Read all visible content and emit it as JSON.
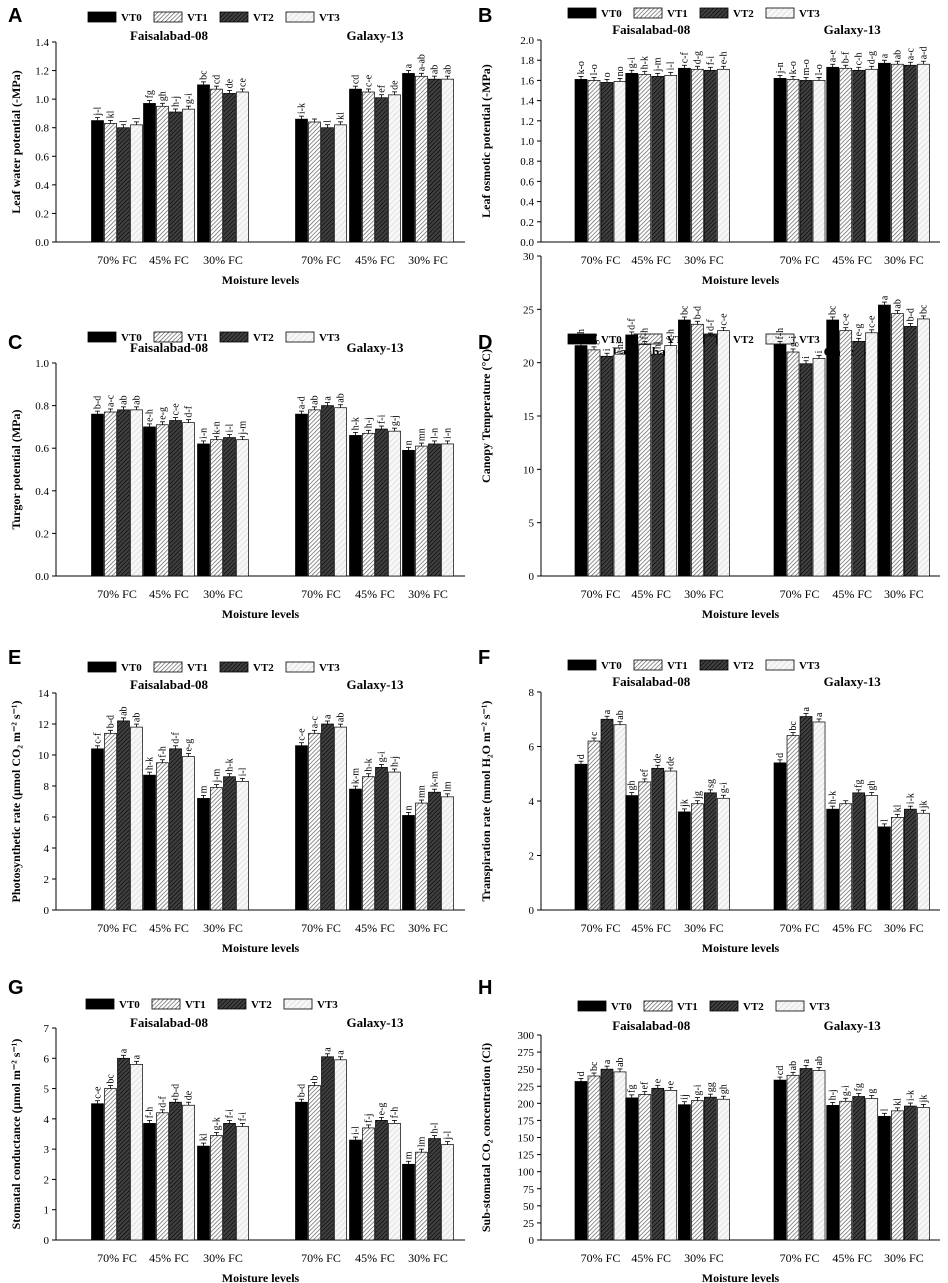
{
  "chart_data": [
    {
      "type": "bar",
      "panel_label": "A",
      "ylabel": "Leaf water potential (-MPa)",
      "xlabel": "Moisture levels",
      "ylim": [
        0,
        1.4
      ],
      "yticks": [
        "0.0",
        "0.2",
        "0.4",
        "0.6",
        "0.8",
        "1.0",
        "1.2",
        "1.4"
      ],
      "legend": [
        "VT0",
        "VT1",
        "VT2",
        "VT3"
      ],
      "cultivars": [
        "Faisalabad-08",
        "Galaxy-13"
      ],
      "categories": [
        "70% FC",
        "45% FC",
        "30% FC"
      ],
      "groups": [
        {
          "cultivar": "Faisalabad-08",
          "category": "70% FC",
          "values": [
            0.85,
            0.83,
            0.8,
            0.82
          ],
          "labels": [
            "j-l",
            "kl",
            "l",
            "l"
          ]
        },
        {
          "cultivar": "Faisalabad-08",
          "category": "45% FC",
          "values": [
            0.97,
            0.95,
            0.91,
            0.93
          ],
          "labels": [
            "fg",
            "gh",
            "h-j",
            "g-i"
          ]
        },
        {
          "cultivar": "Faisalabad-08",
          "category": "30% FC",
          "values": [
            1.1,
            1.07,
            1.04,
            1.05
          ],
          "labels": [
            "bc",
            "cd",
            "de",
            "ce"
          ]
        },
        {
          "cultivar": "Galaxy-13",
          "category": "70% FC",
          "values": [
            0.86,
            0.84,
            0.8,
            0.82
          ],
          "labels": [
            "i-k",
            "",
            "l",
            "kl"
          ]
        },
        {
          "cultivar": "Galaxy-13",
          "category": "45% FC",
          "values": [
            1.07,
            1.05,
            1.01,
            1.03
          ],
          "labels": [
            "cd",
            "c-e",
            "ef",
            "de"
          ]
        },
        {
          "cultivar": "Galaxy-13",
          "category": "30% FC",
          "values": [
            1.18,
            1.16,
            1.14,
            1.14
          ],
          "labels": [
            "a",
            "a-ab",
            "ab",
            "ab"
          ]
        }
      ]
    },
    {
      "type": "bar",
      "panel_label": "B",
      "ylabel": "Leaf osmotic potential (-MPa)",
      "xlabel": "Moisture levels",
      "ylim": [
        0,
        2.0
      ],
      "yticks": [
        "0.0",
        "0.2",
        "0.4",
        "0.6",
        "0.8",
        "1.0",
        "1.2",
        "1.4",
        "1.6",
        "1.8",
        "2.0"
      ],
      "legend": [
        "VT0",
        "VT1",
        "VT2",
        "VT3"
      ],
      "cultivars": [
        "Faisalabad-08",
        "Galaxy-13"
      ],
      "categories": [
        "70% FC",
        "45% FC",
        "30% FC"
      ],
      "groups": [
        {
          "cultivar": "Faisalabad-08",
          "category": "70% FC",
          "values": [
            1.61,
            1.6,
            1.58,
            1.59
          ],
          "labels": [
            "k-o",
            "l-o",
            "o",
            "no"
          ]
        },
        {
          "cultivar": "Faisalabad-08",
          "category": "45% FC",
          "values": [
            1.67,
            1.66,
            1.64,
            1.65
          ],
          "labels": [
            "g-i",
            "h-k",
            "j-m",
            "i-l"
          ]
        },
        {
          "cultivar": "Faisalabad-08",
          "category": "30% FC",
          "values": [
            1.72,
            1.71,
            1.7,
            1.71
          ],
          "labels": [
            "c-f",
            "d-g",
            "f-i",
            "e-h"
          ]
        },
        {
          "cultivar": "Galaxy-13",
          "category": "70% FC",
          "values": [
            1.62,
            1.61,
            1.6,
            1.6
          ],
          "labels": [
            "j-n",
            "k-o",
            "m-o",
            "l-o"
          ]
        },
        {
          "cultivar": "Galaxy-13",
          "category": "45% FC",
          "values": [
            1.73,
            1.72,
            1.7,
            1.71
          ],
          "labels": [
            "a-e",
            "b-f",
            "c-h",
            "d-g"
          ]
        },
        {
          "cultivar": "Galaxy-13",
          "category": "30% FC",
          "values": [
            1.77,
            1.76,
            1.75,
            1.76
          ],
          "labels": [
            "a",
            "ab",
            "a-c",
            "a-d"
          ]
        }
      ]
    },
    {
      "type": "bar",
      "panel_label": "C",
      "ylabel": "Turgor potential (MPa)",
      "xlabel": "Moisture levels",
      "ylim": [
        0,
        1.0
      ],
      "yticks": [
        "0.0",
        "0.2",
        "0.4",
        "0.6",
        "0.8",
        "1.0"
      ],
      "legend": [
        "VT0",
        "VT1",
        "VT2",
        "VT3"
      ],
      "cultivars": [
        "Faisalabad-08",
        "Galaxy-13"
      ],
      "categories": [
        "70% FC",
        "45% FC",
        "30% FC"
      ],
      "groups": [
        {
          "cultivar": "Faisalabad-08",
          "category": "70% FC",
          "values": [
            0.76,
            0.77,
            0.78,
            0.78
          ],
          "labels": [
            "b-d",
            "a-c",
            "ab",
            "ab"
          ]
        },
        {
          "cultivar": "Faisalabad-08",
          "category": "45% FC",
          "values": [
            0.7,
            0.71,
            0.73,
            0.72
          ],
          "labels": [
            "e-h",
            "e-g",
            "c-e",
            "d-f"
          ]
        },
        {
          "cultivar": "Faisalabad-08",
          "category": "30% FC",
          "values": [
            0.62,
            0.64,
            0.65,
            0.64
          ],
          "labels": [
            "i-n",
            "k-n",
            "i-l",
            "j-m"
          ]
        },
        {
          "cultivar": "Galaxy-13",
          "category": "70% FC",
          "values": [
            0.76,
            0.78,
            0.8,
            0.79
          ],
          "labels": [
            "a-d",
            "ab",
            "a",
            "ab"
          ]
        },
        {
          "cultivar": "Galaxy-13",
          "category": "45% FC",
          "values": [
            0.66,
            0.67,
            0.69,
            0.68
          ],
          "labels": [
            "h-k",
            "h-j",
            "f-i",
            "g-j"
          ]
        },
        {
          "cultivar": "Galaxy-13",
          "category": "30% FC",
          "values": [
            0.59,
            0.61,
            0.62,
            0.62
          ],
          "labels": [
            "n",
            "mn",
            "l-n",
            "i-n"
          ]
        }
      ]
    },
    {
      "type": "bar",
      "panel_label": "D",
      "ylabel": "Canopy Temperature (°C)",
      "xlabel": "Moisture levels",
      "ylim": [
        0,
        30
      ],
      "yticks": [
        "0",
        "5",
        "10",
        "15",
        "20",
        "25",
        "30"
      ],
      "legend": [
        "VT0",
        "VT1",
        "VT2",
        "VT3"
      ],
      "cultivars": [
        "Faisalabad-08",
        "Galaxy-13"
      ],
      "categories": [
        "70% FC",
        "45% FC",
        "30% FC"
      ],
      "groups": [
        {
          "cultivar": "Faisalabad-08",
          "category": "70% FC",
          "values": [
            21.6,
            21.2,
            20.6,
            20.8
          ],
          "labels": [
            "f-h",
            "g-i",
            "i",
            "hi"
          ]
        },
        {
          "cultivar": "Faisalabad-08",
          "category": "45% FC",
          "values": [
            22.6,
            21.7,
            20.8,
            21.6
          ],
          "labels": [
            "d-f",
            "f-h",
            "hi",
            "f-h"
          ]
        },
        {
          "cultivar": "Faisalabad-08",
          "category": "30% FC",
          "values": [
            24.0,
            23.6,
            22.5,
            23.0
          ],
          "labels": [
            "bc",
            "b-d",
            "d-f",
            "c-e"
          ]
        },
        {
          "cultivar": "Galaxy-13",
          "category": "70% FC",
          "values": [
            21.7,
            21.0,
            19.9,
            20.4
          ],
          "labels": [
            "f-h",
            "g-i",
            "i",
            "i"
          ]
        },
        {
          "cultivar": "Galaxy-13",
          "category": "45% FC",
          "values": [
            24.0,
            23.0,
            22.0,
            22.8
          ],
          "labels": [
            "bc",
            "c-e",
            "e-g",
            "c-e"
          ]
        },
        {
          "cultivar": "Galaxy-13",
          "category": "30% FC",
          "values": [
            25.4,
            24.6,
            23.4,
            24.1
          ],
          "labels": [
            "a",
            "ab",
            "b-d",
            "bc"
          ]
        }
      ]
    },
    {
      "type": "bar",
      "panel_label": "E",
      "ylabel": "Photosynthetic rate (µmol CO₂ m⁻² s⁻¹)",
      "xlabel": "Moisture levels",
      "ylim": [
        0,
        14
      ],
      "yticks": [
        "0",
        "2",
        "4",
        "6",
        "8",
        "10",
        "12",
        "14"
      ],
      "legend": [
        "VT0",
        "VT1",
        "VT2",
        "VT3"
      ],
      "cultivars": [
        "Faisalabad-08",
        "Galaxy-13"
      ],
      "categories": [
        "70% FC",
        "45% FC",
        "30% FC"
      ],
      "groups": [
        {
          "cultivar": "Faisalabad-08",
          "category": "70% FC",
          "values": [
            10.4,
            11.4,
            12.2,
            11.8
          ],
          "labels": [
            "c-f",
            "b-d",
            "ab",
            "ab"
          ]
        },
        {
          "cultivar": "Faisalabad-08",
          "category": "45% FC",
          "values": [
            8.7,
            9.5,
            10.4,
            9.9
          ],
          "labels": [
            "h-k",
            "f-h",
            "d-f",
            "e-g"
          ]
        },
        {
          "cultivar": "Faisalabad-08",
          "category": "30% FC",
          "values": [
            7.2,
            7.9,
            8.6,
            8.3
          ],
          "labels": [
            "m",
            "j-m",
            "h-k",
            "i-l"
          ]
        },
        {
          "cultivar": "Galaxy-13",
          "category": "70% FC",
          "values": [
            10.6,
            11.4,
            12.0,
            11.8
          ],
          "labels": [
            "c-e",
            "a-c",
            "a",
            "ab"
          ]
        },
        {
          "cultivar": "Galaxy-13",
          "category": "45% FC",
          "values": [
            7.8,
            8.6,
            9.2,
            8.9
          ],
          "labels": [
            "k-m",
            "h-k",
            "g-i",
            "h-j"
          ]
        },
        {
          "cultivar": "Galaxy-13",
          "category": "30% FC",
          "values": [
            6.1,
            6.9,
            7.6,
            7.3
          ],
          "labels": [
            "n",
            "mn",
            "k-m",
            "lm"
          ]
        }
      ]
    },
    {
      "type": "bar",
      "panel_label": "F",
      "ylabel": "Transpiration rate (mmol H₂O m⁻² s⁻¹)",
      "xlabel": "Moisture levels",
      "ylim": [
        0,
        8
      ],
      "yticks": [
        "0",
        "2",
        "4",
        "6",
        "8"
      ],
      "legend": [
        "VT0",
        "VT1",
        "VT2",
        "VT3"
      ],
      "cultivars": [
        "Faisalabad-08",
        "Galaxy-13"
      ],
      "categories": [
        "70% FC",
        "45% FC",
        "30% FC"
      ],
      "groups": [
        {
          "cultivar": "Faisalabad-08",
          "category": "70% FC",
          "values": [
            5.35,
            6.2,
            7.0,
            6.8
          ],
          "labels": [
            "d",
            "c",
            "a",
            "ab"
          ]
        },
        {
          "cultivar": "Faisalabad-08",
          "category": "45% FC",
          "values": [
            4.2,
            4.7,
            5.2,
            5.1
          ],
          "labels": [
            "gh",
            "ef",
            "de",
            "de"
          ]
        },
        {
          "cultivar": "Faisalabad-08",
          "category": "30% FC",
          "values": [
            3.6,
            3.9,
            4.3,
            4.1
          ],
          "labels": [
            "jk",
            "jg",
            "sg",
            "g-i"
          ]
        },
        {
          "cultivar": "Galaxy-13",
          "category": "70% FC",
          "values": [
            5.4,
            6.4,
            7.1,
            6.9
          ],
          "labels": [
            "d",
            "bc",
            "a",
            "a"
          ]
        },
        {
          "cultivar": "Galaxy-13",
          "category": "45% FC",
          "values": [
            3.7,
            3.9,
            4.3,
            4.2
          ],
          "labels": [
            "h-k",
            "",
            "fg",
            "gh"
          ]
        },
        {
          "cultivar": "Galaxy-13",
          "category": "30% FC",
          "values": [
            3.05,
            3.4,
            3.7,
            3.55
          ],
          "labels": [
            "l",
            "kl",
            "i-k",
            "jk"
          ]
        }
      ]
    },
    {
      "type": "bar",
      "panel_label": "G",
      "ylabel": "Stomatal conductance (µmol m⁻² s⁻¹)",
      "xlabel": "Moisture levels",
      "ylim": [
        0,
        7
      ],
      "yticks": [
        "0",
        "1",
        "2",
        "3",
        "4",
        "5",
        "6",
        "7"
      ],
      "legend": [
        "VT0",
        "VT1",
        "VT2",
        "VT3"
      ],
      "cultivars": [
        "Faisalabad-08",
        "Galaxy-13"
      ],
      "categories": [
        "70% FC",
        "45% FC",
        "30% FC"
      ],
      "groups": [
        {
          "cultivar": "Faisalabad-08",
          "category": "70% FC",
          "values": [
            4.5,
            5.0,
            6.0,
            5.8
          ],
          "labels": [
            "c-e",
            "bc",
            "a",
            "a"
          ]
        },
        {
          "cultivar": "Faisalabad-08",
          "category": "45% FC",
          "values": [
            3.85,
            4.2,
            4.55,
            4.45
          ],
          "labels": [
            "f-h",
            "d-f",
            "b-d",
            "de"
          ]
        },
        {
          "cultivar": "Faisalabad-08",
          "category": "30% FC",
          "values": [
            3.1,
            3.45,
            3.85,
            3.75
          ],
          "labels": [
            "kl",
            "g-k",
            "f-i",
            "f-i"
          ]
        },
        {
          "cultivar": "Galaxy-13",
          "category": "70% FC",
          "values": [
            4.55,
            5.1,
            6.05,
            5.95
          ],
          "labels": [
            "b-d",
            "b",
            "a",
            "a"
          ]
        },
        {
          "cultivar": "Galaxy-13",
          "category": "45% FC",
          "values": [
            3.3,
            3.7,
            3.95,
            3.85
          ],
          "labels": [
            "i-l",
            "f-j",
            "e-g",
            "f-h"
          ]
        },
        {
          "cultivar": "Galaxy-13",
          "category": "30% FC",
          "values": [
            2.5,
            2.9,
            3.35,
            3.15
          ],
          "labels": [
            "m",
            "lm",
            "h-l",
            "j-l"
          ]
        }
      ]
    },
    {
      "type": "bar",
      "panel_label": "H",
      "ylabel": "Sub-stomatal CO₂ concentration (Ci)",
      "xlabel": "Moisture levels",
      "ylim": [
        0,
        300
      ],
      "yticks": [
        "0",
        "25",
        "50",
        "75",
        "100",
        "125",
        "150",
        "175",
        "200",
        "225",
        "250",
        "275",
        "300"
      ],
      "legend": [
        "VT0",
        "VT1",
        "VT2",
        "VT3"
      ],
      "cultivars": [
        "Faisalabad-08",
        "Galaxy-13"
      ],
      "categories": [
        "70% FC",
        "45% FC",
        "30% FC"
      ],
      "groups": [
        {
          "cultivar": "Faisalabad-08",
          "category": "70% FC",
          "values": [
            232,
            240,
            250,
            246
          ],
          "labels": [
            "d",
            "bc",
            "a",
            "ab"
          ]
        },
        {
          "cultivar": "Faisalabad-08",
          "category": "45% FC",
          "values": [
            208,
            213,
            222,
            219
          ],
          "labels": [
            "fg",
            "ef",
            "e",
            "e"
          ]
        },
        {
          "cultivar": "Faisalabad-08",
          "category": "30% FC",
          "values": [
            198,
            204,
            209,
            206
          ],
          "labels": [
            "ij",
            "g-i",
            "gg",
            "gh"
          ]
        },
        {
          "cultivar": "Galaxy-13",
          "category": "70% FC",
          "values": [
            234,
            241,
            251,
            248
          ],
          "labels": [
            "cd",
            "ab",
            "a",
            "ab"
          ]
        },
        {
          "cultivar": "Galaxy-13",
          "category": "45% FC",
          "values": [
            197,
            203,
            210,
            207
          ],
          "labels": [
            "h-j",
            "g-i",
            "fg",
            "g"
          ]
        },
        {
          "cultivar": "Galaxy-13",
          "category": "30% FC",
          "values": [
            181,
            189,
            196,
            194
          ],
          "labels": [
            "l",
            "kl",
            "i-k",
            "jk"
          ]
        }
      ]
    }
  ]
}
